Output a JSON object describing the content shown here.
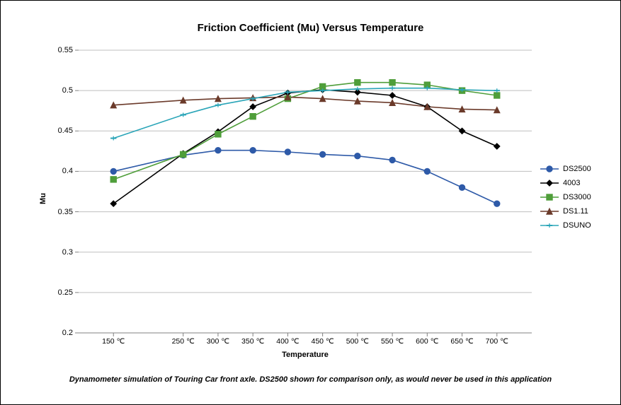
{
  "chart": {
    "type": "line",
    "title": "Friction Coefficient (Mu) Versus Temperature",
    "title_fontsize": 15,
    "xlabel": "Temperature",
    "ylabel": "Mu",
    "caption": "Dynamometer simulation of Touring Car front axle. DS2500 shown for comparison only, as would never be used in this application",
    "background_color": "#ffffff",
    "grid_color": "#bfbfbf",
    "axis_color": "#808080",
    "tick_color": "#808080",
    "tick_label_color": "#000000",
    "xlim": [
      100,
      750
    ],
    "ylim": [
      0.2,
      0.55
    ],
    "ytick_step": 0.05,
    "yticks": [
      0.2,
      0.25,
      0.3,
      0.35,
      0.4,
      0.45,
      0.5,
      0.55
    ],
    "xticks": [
      150,
      250,
      300,
      350,
      400,
      450,
      500,
      550,
      600,
      650,
      700
    ],
    "xtick_labels": [
      "150 ℃",
      "250 ℃",
      "300 ℃",
      "350 ℃",
      "400 ℃",
      "450 ℃",
      "500 ℃",
      "550 ℃",
      "600 ℃",
      "650 ℃",
      "700 ℃"
    ],
    "categories_x": [
      150,
      250,
      300,
      350,
      400,
      450,
      500,
      550,
      600,
      650,
      700
    ],
    "line_width": 1.6,
    "marker_size": 4.2,
    "series": [
      {
        "name": "DS2500",
        "color": "#2e5aa8",
        "marker": "circle",
        "values": [
          0.4,
          0.42,
          0.426,
          0.426,
          0.424,
          0.421,
          0.419,
          0.414,
          0.4,
          0.38,
          0.36
        ]
      },
      {
        "name": "4003",
        "color": "#000000",
        "marker": "diamond",
        "values": [
          0.36,
          0.422,
          0.449,
          0.48,
          0.497,
          0.501,
          0.498,
          0.494,
          0.48,
          0.45,
          0.431
        ]
      },
      {
        "name": "DS3000",
        "color": "#4f9e3a",
        "marker": "square",
        "values": [
          0.39,
          0.421,
          0.446,
          0.468,
          0.49,
          0.505,
          0.51,
          0.51,
          0.507,
          0.5,
          0.494
        ]
      },
      {
        "name": "DS1.11",
        "color": "#6b3a2a",
        "marker": "triangle",
        "values": [
          0.482,
          0.488,
          0.49,
          0.491,
          0.492,
          0.49,
          0.487,
          0.485,
          0.48,
          0.477,
          0.476
        ]
      },
      {
        "name": "DSUNO",
        "color": "#2aa5b8",
        "marker": "tick",
        "values": [
          0.441,
          0.47,
          0.482,
          0.49,
          0.498,
          0.5,
          0.502,
          0.503,
          0.503,
          0.501,
          0.5
        ]
      }
    ],
    "legend_position": "right"
  }
}
